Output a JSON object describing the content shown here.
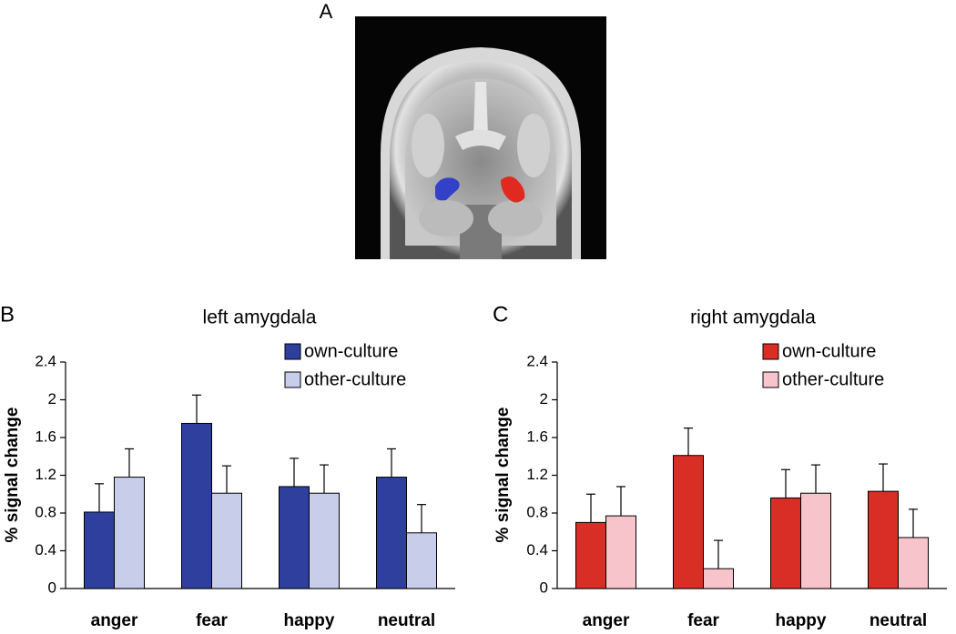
{
  "figure": {
    "panel_label": "A"
  },
  "chart_data": [
    {
      "type": "bar",
      "panel_label": "B",
      "title": "left amygdala",
      "ylabel": "% signal change",
      "categories": [
        "anger",
        "fear",
        "happy",
        "neutral"
      ],
      "series": [
        {
          "name": "own-culture",
          "color": "#2e3f9e",
          "values": [
            0.81,
            1.75,
            1.08,
            1.18
          ],
          "errors": [
            0.3,
            0.3,
            0.3,
            0.3
          ]
        },
        {
          "name": "other-culture",
          "color": "#c8cdea",
          "values": [
            1.18,
            1.01,
            1.01,
            0.59
          ],
          "errors": [
            0.3,
            0.29,
            0.3,
            0.3
          ]
        }
      ],
      "ylim": [
        0,
        2.4
      ],
      "yticks": [
        0,
        0.4,
        0.8,
        1.2,
        1.6,
        2,
        2.4
      ]
    },
    {
      "type": "bar",
      "panel_label": "C",
      "title": "right amygdala",
      "ylabel": "% signal change",
      "categories": [
        "anger",
        "fear",
        "happy",
        "neutral"
      ],
      "series": [
        {
          "name": "own-culture",
          "color": "#d92e25",
          "values": [
            0.7,
            1.41,
            0.96,
            1.03
          ],
          "errors": [
            0.3,
            0.29,
            0.3,
            0.29
          ]
        },
        {
          "name": "other-culture",
          "color": "#f7c4cc",
          "values": [
            0.77,
            0.21,
            1.01,
            0.54
          ],
          "errors": [
            0.31,
            0.3,
            0.3,
            0.3
          ]
        }
      ],
      "ylim": [
        0,
        2.4
      ],
      "yticks": [
        0,
        0.4,
        0.8,
        1.2,
        1.6,
        2,
        2.4
      ]
    }
  ]
}
